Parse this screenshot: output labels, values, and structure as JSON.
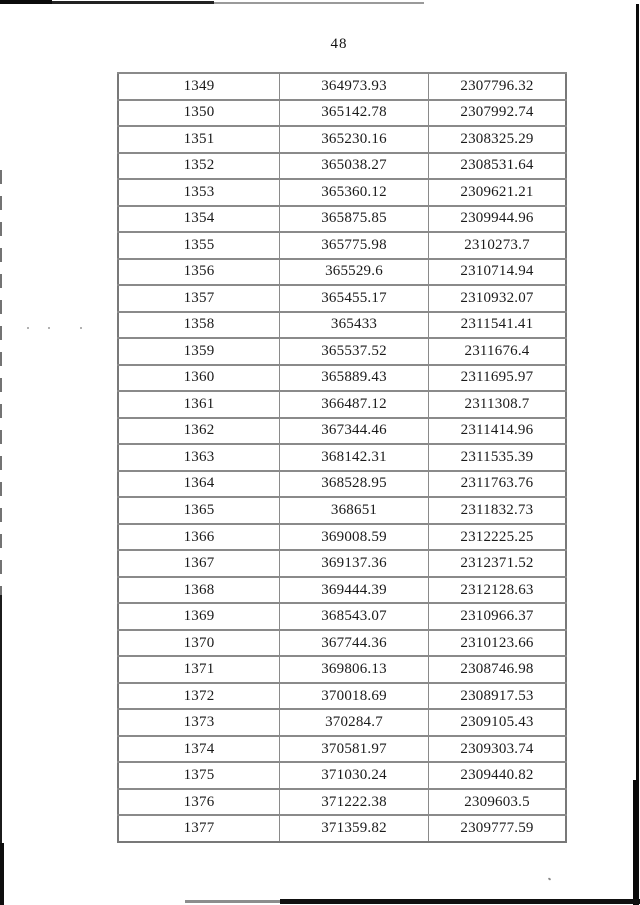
{
  "page": {
    "number": "48"
  },
  "colors": {
    "table_border": "#8a8a8a",
    "text": "#1a1a1a",
    "scan_edge": "#0a0a0a"
  },
  "table": {
    "rows": [
      [
        "1349",
        "364973.93",
        "2307796.32"
      ],
      [
        "1350",
        "365142.78",
        "2307992.74"
      ],
      [
        "1351",
        "365230.16",
        "2308325.29"
      ],
      [
        "1352",
        "365038.27",
        "2308531.64"
      ],
      [
        "1353",
        "365360.12",
        "2309621.21"
      ],
      [
        "1354",
        "365875.85",
        "2309944.96"
      ],
      [
        "1355",
        "365775.98",
        "2310273.7"
      ],
      [
        "1356",
        "365529.6",
        "2310714.94"
      ],
      [
        "1357",
        "365455.17",
        "2310932.07"
      ],
      [
        "1358",
        "365433",
        "2311541.41"
      ],
      [
        "1359",
        "365537.52",
        "2311676.4"
      ],
      [
        "1360",
        "365889.43",
        "2311695.97"
      ],
      [
        "1361",
        "366487.12",
        "2311308.7"
      ],
      [
        "1362",
        "367344.46",
        "2311414.96"
      ],
      [
        "1363",
        "368142.31",
        "2311535.39"
      ],
      [
        "1364",
        "368528.95",
        "2311763.76"
      ],
      [
        "1365",
        "368651",
        "2311832.73"
      ],
      [
        "1366",
        "369008.59",
        "2312225.25"
      ],
      [
        "1367",
        "369137.36",
        "2312371.52"
      ],
      [
        "1368",
        "369444.39",
        "2312128.63"
      ],
      [
        "1369",
        "368543.07",
        "2310966.37"
      ],
      [
        "1370",
        "367744.36",
        "2310123.66"
      ],
      [
        "1371",
        "369806.13",
        "2308746.98"
      ],
      [
        "1372",
        "370018.69",
        "2308917.53"
      ],
      [
        "1373",
        "370284.7",
        "2309105.43"
      ],
      [
        "1374",
        "370581.97",
        "2309303.74"
      ],
      [
        "1375",
        "371030.24",
        "2309440.82"
      ],
      [
        "1376",
        "371222.38",
        "2309603.5"
      ],
      [
        "1377",
        "371359.82",
        "2309777.59"
      ]
    ]
  }
}
